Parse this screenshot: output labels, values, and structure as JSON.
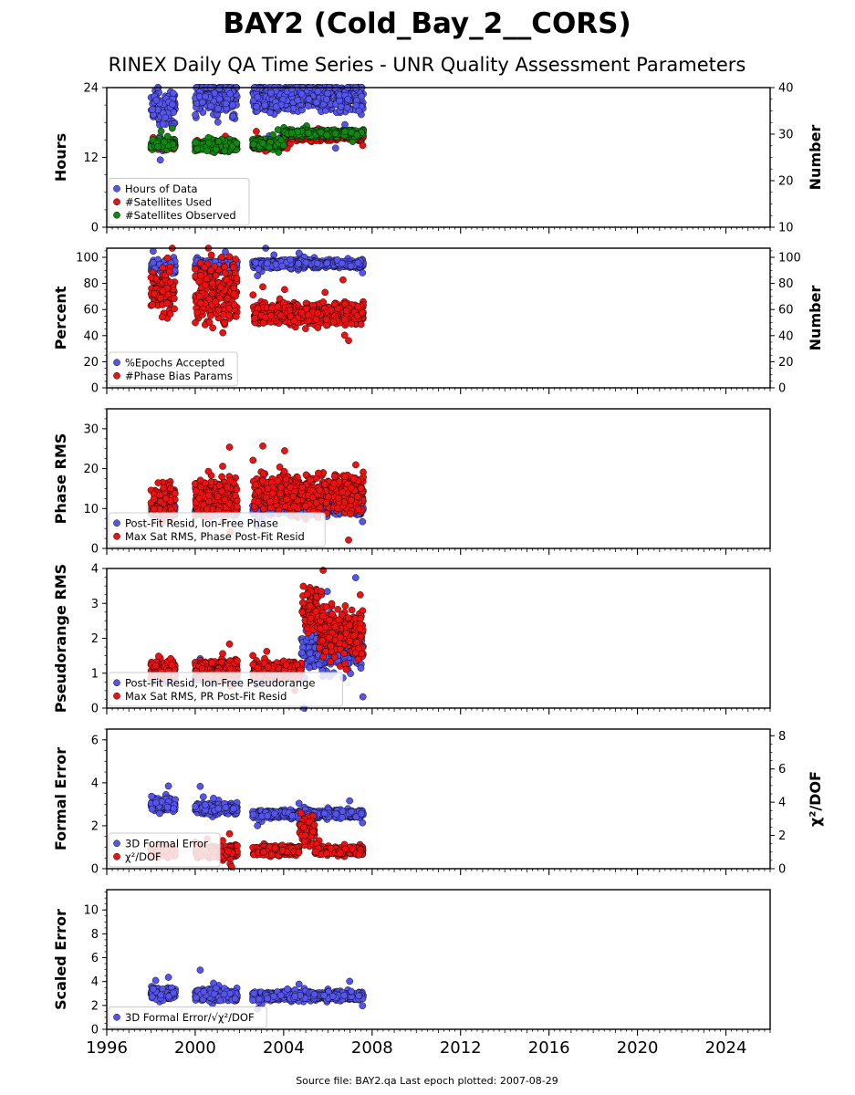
{
  "title": "BAY2 (Cold_Bay_2__CORS)",
  "subtitle": "RINEX Daily QA Time Series - UNR Quality Assessment Parameters",
  "footer": "Source file: BAY2.qa Last epoch plotted: 2007-08-29",
  "colors": {
    "blue": "#5555ee",
    "red": "#ee1111",
    "green": "#118811"
  },
  "chart_data": [
    {
      "type": "scatter",
      "xlim": [
        1996,
        2026
      ],
      "x_ticks": [
        "1996",
        "2000",
        "2004",
        "2008",
        "2012",
        "2016",
        "2020",
        "2024"
      ],
      "ylabel": "Hours",
      "ylim": [
        0,
        24
      ],
      "y_ticks": [
        "0",
        "12",
        "24"
      ],
      "ylabel_right": "Number",
      "ylim_right": [
        10,
        40
      ],
      "y_ticks_right": [
        "10",
        "20",
        "30",
        "40"
      ],
      "legend_position": "lower-left",
      "series": [
        {
          "name": "Hours of Data",
          "color": "blue",
          "axis": "left",
          "segments": [
            {
              "x": [
                1998.0,
                1999.1
              ],
              "level": 20.5,
              "spread": 2.5
            },
            {
              "x": [
                2000.0,
                2001.9
              ],
              "level": 22.5,
              "spread": 2.5
            },
            {
              "x": [
                2002.6,
                2007.6
              ],
              "level": 22.5,
              "spread": 2.2
            }
          ]
        },
        {
          "name": "#Satellites Used",
          "color": "red",
          "axis": "right",
          "segments": [
            {
              "x": [
                1998.0,
                1999.1
              ],
              "level": 27.5,
              "spread": 0.6
            },
            {
              "x": [
                2000.0,
                2001.9
              ],
              "level": 27.5,
              "spread": 0.6
            },
            {
              "x": [
                2002.6,
                2004.0
              ],
              "level": 27.5,
              "spread": 0.6
            },
            {
              "x": [
                2004.0,
                2007.6
              ],
              "level": 29.5,
              "spread": 0.7
            }
          ]
        },
        {
          "name": "#Satellites Observed",
          "color": "green",
          "axis": "right",
          "segments": [
            {
              "x": [
                1998.0,
                1999.1
              ],
              "level": 28.0,
              "spread": 0.8
            },
            {
              "x": [
                2000.0,
                2001.9
              ],
              "level": 27.5,
              "spread": 0.9
            },
            {
              "x": [
                2002.6,
                2004.0
              ],
              "level": 28.0,
              "spread": 0.8
            },
            {
              "x": [
                2004.0,
                2007.6
              ],
              "level": 30.2,
              "spread": 0.6
            }
          ]
        }
      ]
    },
    {
      "type": "scatter",
      "xlim": [
        1996,
        2026
      ],
      "ylabel": "Percent",
      "ylim": [
        0,
        107
      ],
      "y_ticks": [
        "0",
        "20",
        "40",
        "60",
        "80",
        "100"
      ],
      "ylabel_right": "Number",
      "ylim_right": [
        0,
        107
      ],
      "y_ticks_right": [
        "0",
        "20",
        "40",
        "60",
        "80",
        "100"
      ],
      "legend_position": "lower-left",
      "series": [
        {
          "name": "%Epochs Accepted",
          "color": "blue",
          "axis": "left",
          "segments": [
            {
              "x": [
                1998.0,
                1999.1
              ],
              "level": 93,
              "spread": 4
            },
            {
              "x": [
                2000.0,
                2001.9
              ],
              "level": 94,
              "spread": 3
            },
            {
              "x": [
                2002.6,
                2007.6
              ],
              "level": 95,
              "spread": 2.5
            }
          ]
        },
        {
          "name": "#Phase Bias Params",
          "color": "red",
          "axis": "right",
          "segments": [
            {
              "x": [
                1998.0,
                1999.1
              ],
              "level": 75,
              "spread": 13
            },
            {
              "x": [
                2000.0,
                2001.9
              ],
              "level": 72,
              "spread": 18
            },
            {
              "x": [
                2002.6,
                2007.6
              ],
              "level": 57,
              "spread": 7
            }
          ]
        }
      ]
    },
    {
      "type": "scatter",
      "xlim": [
        1996,
        2026
      ],
      "ylabel": "Phase RMS",
      "ylim": [
        0,
        35
      ],
      "y_ticks": [
        "0",
        "10",
        "20",
        "30"
      ],
      "legend_position": "lower-left",
      "series": [
        {
          "name": "Post-Fit Resid, Ion-Free Phase",
          "color": "blue",
          "axis": "left",
          "segments": [
            {
              "x": [
                1998.0,
                1999.1
              ],
              "level": 9.5,
              "spread": 1.0
            },
            {
              "x": [
                2000.0,
                2001.9
              ],
              "level": 9.5,
              "spread": 1.0
            },
            {
              "x": [
                2002.6,
                2007.6
              ],
              "level": 10.0,
              "spread": 1.2
            }
          ]
        },
        {
          "name": "Max Sat RMS, Phase Post-Fit Resid",
          "color": "red",
          "axis": "left",
          "segments": [
            {
              "x": [
                1998.0,
                1999.1
              ],
              "level": 12.0,
              "spread": 3.5
            },
            {
              "x": [
                2000.0,
                2001.9
              ],
              "level": 12.5,
              "spread": 3.5
            },
            {
              "x": [
                2002.6,
                2007.6
              ],
              "level": 14.0,
              "spread": 4.0
            }
          ]
        }
      ]
    },
    {
      "type": "scatter",
      "xlim": [
        1996,
        2026
      ],
      "ylabel": "Pseudorange RMS",
      "ylim": [
        0,
        4
      ],
      "y_ticks": [
        "0",
        "1",
        "2",
        "3",
        "4"
      ],
      "legend_position": "lower-left",
      "series": [
        {
          "name": "Post-Fit Resid, Ion-Free Pseudorange",
          "color": "blue",
          "axis": "left",
          "segments": [
            {
              "x": [
                1998.0,
                1999.1
              ],
              "level": 0.9,
              "spread": 0.1
            },
            {
              "x": [
                2000.0,
                2001.9
              ],
              "level": 0.9,
              "spread": 0.1
            },
            {
              "x": [
                2002.6,
                2004.8
              ],
              "level": 0.95,
              "spread": 0.12
            },
            {
              "x": [
                2004.8,
                2007.6
              ],
              "level": 1.7,
              "spread": 0.5
            }
          ]
        },
        {
          "name": "Max Sat RMS, PR Post-Fit Resid",
          "color": "red",
          "axis": "left",
          "segments": [
            {
              "x": [
                1998.0,
                1999.1
              ],
              "level": 1.1,
              "spread": 0.2
            },
            {
              "x": [
                2000.0,
                2001.9
              ],
              "level": 1.1,
              "spread": 0.2
            },
            {
              "x": [
                2002.6,
                2004.8
              ],
              "level": 1.1,
              "spread": 0.2
            },
            {
              "x": [
                2004.8,
                2005.6
              ],
              "level": 2.9,
              "spread": 0.5
            },
            {
              "x": [
                2005.6,
                2007.6
              ],
              "level": 2.2,
              "spread": 0.6
            }
          ]
        }
      ]
    },
    {
      "type": "scatter",
      "xlim": [
        1996,
        2026
      ],
      "ylabel": "Formal Error",
      "ylim": [
        0,
        6.5
      ],
      "y_ticks": [
        "0",
        "2",
        "4",
        "6"
      ],
      "ylabel_right": "χ²/DOF",
      "ylim_right": [
        0,
        8.4
      ],
      "y_ticks_right": [
        "0",
        "2",
        "4",
        "6",
        "8"
      ],
      "legend_position": "lower-left",
      "series": [
        {
          "name": "3D Formal Error",
          "color": "blue",
          "axis": "left",
          "segments": [
            {
              "x": [
                1998.0,
                1999.1
              ],
              "level": 3.0,
              "spread": 0.25
            },
            {
              "x": [
                2000.0,
                2001.9
              ],
              "level": 2.8,
              "spread": 0.2
            },
            {
              "x": [
                2002.6,
                2007.6
              ],
              "level": 2.55,
              "spread": 0.15
            }
          ]
        },
        {
          "name": "χ²/DOF",
          "color": "red",
          "axis": "right",
          "segments": [
            {
              "x": [
                1998.0,
                1999.1
              ],
              "level": 1.0,
              "spread": 0.25
            },
            {
              "x": [
                2000.0,
                2001.9
              ],
              "level": 1.0,
              "spread": 0.3
            },
            {
              "x": [
                2002.6,
                2004.7
              ],
              "level": 1.1,
              "spread": 0.25
            },
            {
              "x": [
                2004.7,
                2005.4
              ],
              "level": 2.4,
              "spread": 0.8
            },
            {
              "x": [
                2005.4,
                2007.6
              ],
              "level": 1.1,
              "spread": 0.2
            }
          ]
        }
      ]
    },
    {
      "type": "scatter",
      "xlim": [
        1996,
        2026
      ],
      "ylabel": "Scaled Error",
      "ylim": [
        0,
        11.7
      ],
      "y_ticks": [
        "0",
        "2",
        "4",
        "6",
        "8",
        "10"
      ],
      "legend_position": "lower-left",
      "series": [
        {
          "name": "3D Formal Error/√χ²/DOF",
          "color": "blue",
          "axis": "left",
          "segments": [
            {
              "x": [
                1998.0,
                1999.1
              ],
              "level": 3.0,
              "spread": 0.4
            },
            {
              "x": [
                2000.0,
                2001.9
              ],
              "level": 2.9,
              "spread": 0.4
            },
            {
              "x": [
                2002.6,
                2007.6
              ],
              "level": 2.8,
              "spread": 0.3
            }
          ]
        }
      ]
    }
  ]
}
